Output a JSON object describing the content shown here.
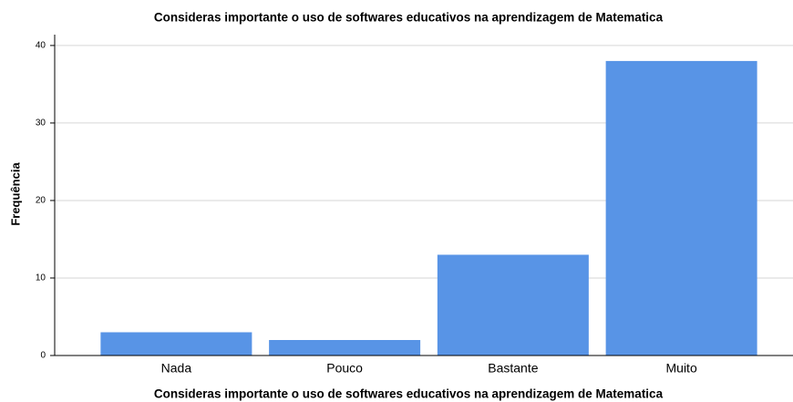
{
  "chart_data": {
    "type": "bar",
    "title": "Consideras importante o uso de softwares educativos na aprendizagem de Matematica",
    "x_label": "Consideras importante o uso de softwares educativos na aprendizagem de Matematica",
    "y_label": "Frequência",
    "categories": [
      "Nada",
      "Pouco",
      "Bastante",
      "Muito"
    ],
    "values": [
      3,
      2,
      13,
      38
    ],
    "color": "#5894e6",
    "ylim": [
      0,
      41.4
    ],
    "yticks": [
      0,
      10,
      20,
      30,
      40
    ],
    "grid": true
  }
}
